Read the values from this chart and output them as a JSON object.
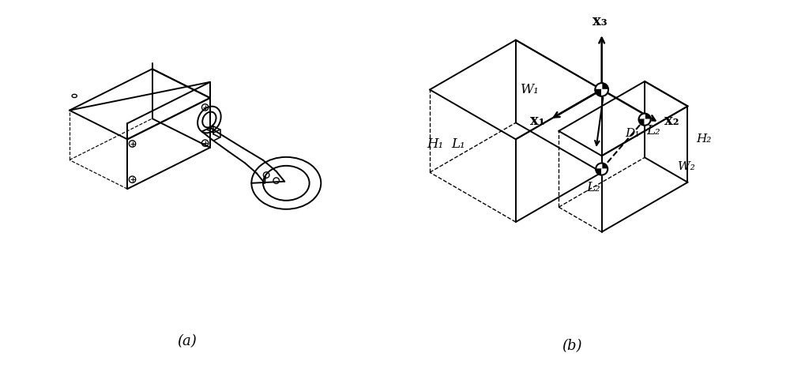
{
  "fig_width": 10.0,
  "fig_height": 4.76,
  "dpi": 100,
  "background": "#ffffff",
  "label_a": "(a)",
  "label_b": "(b)",
  "axes_labels": {
    "x1": "x₁",
    "x2": "x₂",
    "x3": "x₃"
  },
  "dim_labels": {
    "W1": "W₁",
    "H1": "H₁",
    "L1": "L₁",
    "L2_top": "L₂",
    "L2_bottom": "L₂",
    "W2": "W₂",
    "H2": "H₂",
    "D1": "D₁"
  },
  "line_color": "#000000",
  "line_width": 1.4
}
